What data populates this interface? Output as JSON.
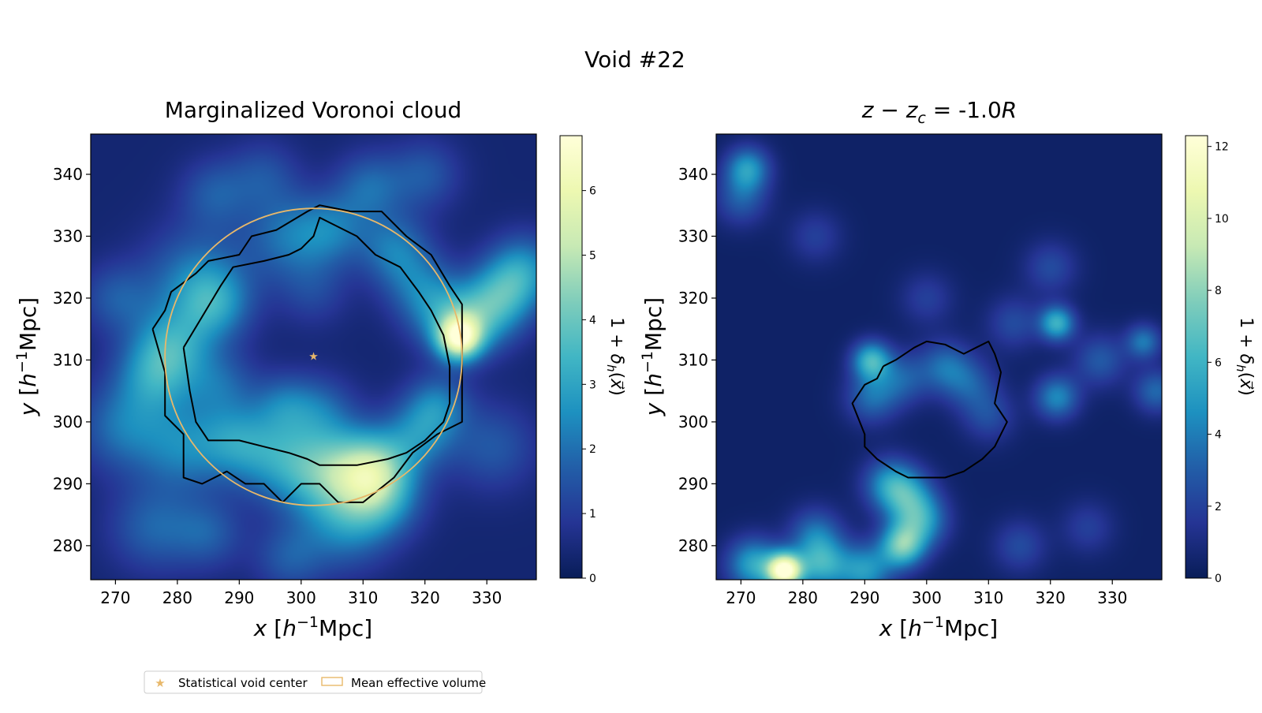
{
  "figure": {
    "suptitle": "Void #22",
    "legend": {
      "placement": "bottom-left",
      "items": [
        {
          "label": "Statistical void center",
          "marker": "star",
          "color": "#e8b86a"
        },
        {
          "label": "Mean effective volume",
          "marker": "rect-outline",
          "color": "#e8b86a"
        }
      ]
    },
    "colors": {
      "cmap": [
        "#081d58",
        "#253494",
        "#225ea8",
        "#1d91c0",
        "#41b6c4",
        "#7fcdbb",
        "#c7e9b4",
        "#edf8b1",
        "#ffffd9"
      ],
      "contour": "#000000",
      "circle": "#e8b86a"
    }
  },
  "chart_data": [
    {
      "type": "heatmap",
      "title": "Marginalized Voronoi cloud",
      "xlabel": "x [h⁻¹Mpc]",
      "ylabel": "y [h⁻¹Mpc]",
      "xlim": [
        266,
        338
      ],
      "ylim": [
        274.5,
        346.5
      ],
      "xticks": [
        270,
        280,
        290,
        300,
        310,
        320,
        330
      ],
      "yticks": [
        280,
        290,
        300,
        310,
        320,
        330,
        340
      ],
      "colorbar": {
        "label": "1 + δh(x⃗)",
        "range": [
          0,
          6.85
        ],
        "ticks": [
          0,
          1,
          2,
          3,
          4,
          5,
          6
        ]
      },
      "void_center": [
        302,
        310.5
      ],
      "mean_effective_radius": 24,
      "blobs": [
        [
          279,
          312,
          2.2,
          4.5
        ],
        [
          276,
          307,
          1.8,
          4.5
        ],
        [
          281,
          296,
          1.8,
          5
        ],
        [
          271,
          299,
          1.6,
          5
        ],
        [
          283,
          323,
          1.8,
          6
        ],
        [
          286,
          319,
          1.7,
          4
        ],
        [
          289,
          297,
          1.4,
          4
        ],
        [
          295,
          295,
          1.8,
          5
        ],
        [
          302,
          292,
          2.0,
          5
        ],
        [
          308,
          292,
          2.2,
          5
        ],
        [
          312,
          293,
          2.0,
          4
        ],
        [
          303,
          302,
          1.3,
          4
        ],
        [
          297,
          303,
          1.2,
          3.5
        ],
        [
          287,
          306,
          1.3,
          4
        ],
        [
          298,
          330,
          1.6,
          5
        ],
        [
          305,
          331,
          1.4,
          4
        ],
        [
          315,
          328,
          1.7,
          4
        ],
        [
          311,
          338,
          1.5,
          4
        ],
        [
          319,
          322,
          1.4,
          4
        ],
        [
          323,
          317,
          1.8,
          4
        ],
        [
          325.5,
          313.5,
          5.0,
          2.5
        ],
        [
          329,
          317,
          2.2,
          4
        ],
        [
          333,
          321,
          2.0,
          4
        ],
        [
          336,
          325,
          1.8,
          4
        ],
        [
          319,
          298,
          1.8,
          4
        ],
        [
          322,
          303,
          1.6,
          3.5
        ],
        [
          313,
          288,
          2.2,
          4.5
        ],
        [
          307,
          283,
          1.6,
          5
        ],
        [
          298,
          278,
          1.2,
          4
        ],
        [
          276,
          283,
          1.4,
          5
        ],
        [
          285,
          282,
          1.2,
          4
        ],
        [
          320,
          340,
          1.2,
          4
        ],
        [
          270,
          320,
          1.2,
          4
        ],
        [
          286,
          337,
          1.2,
          4
        ],
        [
          294,
          340,
          1.0,
          4
        ],
        [
          331,
          296,
          1.2,
          5
        ],
        [
          302,
          321,
          0.8,
          4
        ]
      ],
      "contours": [
        [
          [
            276,
            315
          ],
          [
            278,
            318
          ],
          [
            279,
            321
          ],
          [
            283,
            324
          ],
          [
            285,
            326
          ],
          [
            290,
            327
          ],
          [
            292,
            330
          ],
          [
            296,
            331
          ],
          [
            301,
            334
          ],
          [
            303,
            335
          ],
          [
            308,
            334
          ],
          [
            313,
            334
          ],
          [
            317,
            330
          ],
          [
            321,
            327
          ],
          [
            324,
            322
          ],
          [
            326,
            319
          ],
          [
            326,
            312
          ],
          [
            326,
            300
          ],
          [
            322,
            298
          ],
          [
            318,
            295
          ],
          [
            315,
            291
          ],
          [
            310,
            287
          ],
          [
            306,
            287
          ],
          [
            303,
            290
          ],
          [
            300,
            290
          ],
          [
            297,
            287
          ],
          [
            294,
            290
          ],
          [
            291,
            290
          ],
          [
            288,
            292
          ],
          [
            284,
            290
          ],
          [
            281,
            291
          ],
          [
            281,
            298
          ],
          [
            278,
            301
          ],
          [
            278,
            308
          ],
          [
            276,
            315
          ]
        ],
        [
          [
            281,
            312
          ],
          [
            284,
            317
          ],
          [
            287,
            322
          ],
          [
            289,
            325
          ],
          [
            294,
            326
          ],
          [
            298,
            327
          ],
          [
            300,
            328
          ],
          [
            302,
            330
          ],
          [
            303,
            333
          ],
          [
            307,
            331
          ],
          [
            309,
            330
          ],
          [
            312,
            327
          ],
          [
            316,
            325
          ],
          [
            319,
            321
          ],
          [
            321,
            318
          ],
          [
            323,
            314
          ],
          [
            324,
            309
          ],
          [
            324,
            303
          ],
          [
            323,
            300
          ],
          [
            320,
            297
          ],
          [
            317,
            295
          ],
          [
            314,
            294
          ],
          [
            309,
            293
          ],
          [
            305,
            293
          ],
          [
            303,
            293
          ],
          [
            301,
            294
          ],
          [
            298,
            295
          ],
          [
            294,
            296
          ],
          [
            290,
            297
          ],
          [
            285,
            297
          ],
          [
            283,
            300
          ],
          [
            282,
            305
          ],
          [
            281,
            312
          ]
        ]
      ]
    },
    {
      "type": "heatmap",
      "title": "z − zc = -1.0R",
      "title_parts": {
        "math": "z − z",
        "sub": "c",
        "mid": " = -1.0",
        "unit": "R"
      },
      "xlabel": "x [h⁻¹Mpc]",
      "ylabel": "y [h⁻¹Mpc]",
      "xlim": [
        266,
        338
      ],
      "ylim": [
        274.5,
        346.5
      ],
      "xticks": [
        270,
        280,
        290,
        300,
        310,
        320,
        330
      ],
      "yticks": [
        280,
        290,
        300,
        310,
        320,
        330,
        340
      ],
      "colorbar": {
        "label": "1 + δh(x⃗)",
        "range": [
          0,
          12.3
        ],
        "ticks": [
          0,
          2,
          4,
          6,
          8,
          10,
          12
        ]
      },
      "blobs": [
        [
          277,
          276,
          11.5,
          2.0
        ],
        [
          272,
          277,
          5.0,
          3.0
        ],
        [
          283,
          277,
          5.0,
          3.0
        ],
        [
          290,
          276,
          4.5,
          3.0
        ],
        [
          296,
          280,
          6.5,
          2.5
        ],
        [
          299,
          284,
          4.5,
          3.0
        ],
        [
          294,
          290,
          4.0,
          3.0
        ],
        [
          297,
          288,
          3.5,
          3.0
        ],
        [
          291,
          310,
          5.5,
          2.2
        ],
        [
          291,
          304,
          3.0,
          3.0
        ],
        [
          296,
          307,
          2.5,
          3.0
        ],
        [
          303,
          309,
          3.0,
          3.0
        ],
        [
          307,
          306,
          2.2,
          3.0
        ],
        [
          310,
          301,
          2.0,
          3.0
        ],
        [
          321,
          316,
          5.5,
          2.0
        ],
        [
          320,
          325,
          2.0,
          3.0
        ],
        [
          321,
          304,
          4.0,
          2.5
        ],
        [
          328,
          310,
          2.5,
          3.0
        ],
        [
          335,
          313,
          3.5,
          2.0
        ],
        [
          337,
          305,
          3.0,
          2.5
        ],
        [
          271,
          341,
          4.5,
          2.5
        ],
        [
          270,
          336,
          2.5,
          3.0
        ],
        [
          282,
          282,
          3.0,
          3.0
        ],
        [
          314,
          316,
          2.0,
          3.0
        ],
        [
          300,
          320,
          1.6,
          3.0
        ],
        [
          315,
          280,
          2.0,
          3.0
        ],
        [
          326,
          283,
          1.6,
          3.0
        ],
        [
          282,
          330,
          1.6,
          3.0
        ]
      ],
      "contours": [
        [
          [
            293,
            309
          ],
          [
            295,
            310
          ],
          [
            298,
            312
          ],
          [
            300,
            313
          ],
          [
            303,
            312.5
          ],
          [
            306,
            311
          ],
          [
            308,
            312
          ],
          [
            310,
            313
          ],
          [
            311,
            311
          ],
          [
            312,
            308
          ],
          [
            311,
            303
          ],
          [
            313,
            300
          ],
          [
            311,
            296
          ],
          [
            309,
            294
          ],
          [
            306,
            292
          ],
          [
            303,
            291
          ],
          [
            300,
            291
          ],
          [
            297,
            291
          ],
          [
            295,
            292
          ],
          [
            292,
            294
          ],
          [
            290,
            296
          ],
          [
            290,
            298
          ],
          [
            288,
            303
          ],
          [
            290,
            306
          ],
          [
            292,
            307
          ],
          [
            293,
            309
          ]
        ]
      ]
    }
  ]
}
